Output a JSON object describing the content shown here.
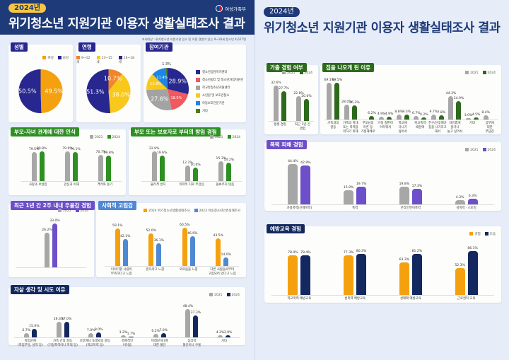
{
  "left": {
    "badge": "2024년",
    "title": "위기청소년 지원기관 이용자 생활실태조사 결과",
    "ministry": "여성가족부",
    "note": "조사대상 : 위기청소년 지원기관 입소 및 이용 경험이 있는 9~18세 청소년 4,627명"
  },
  "right": {
    "badge": "2024년",
    "title": "위기청소년 지원기관 이용자 생활실태조사 결과"
  },
  "colors": {
    "navy": "#27278f",
    "green": "#2e8f23",
    "purple": "#6d4fc9",
    "blue": "#4f88d3",
    "darknavy": "#13285e",
    "darkgreen": "#2d6a1c",
    "orange": "#f5a10f",
    "gray": "#a7a7a7"
  },
  "chart_data": [
    {
      "id": "gender",
      "type": "pie",
      "title": "성별",
      "slices": [
        {
          "name": "여성",
          "value": 49.5,
          "label": "49.5%",
          "color": "#f5a10f"
        },
        {
          "name": "남성",
          "value": 50.5,
          "label": "50.5%",
          "color": "#27278f"
        }
      ]
    },
    {
      "id": "age",
      "type": "pie",
      "title": "연령",
      "slices": [
        {
          "name": "9~12세",
          "value": 10.7,
          "label": "10.7%",
          "color": "#f0852a"
        },
        {
          "name": "13~15세",
          "value": 38.0,
          "label": "38.0%",
          "color": "#f8c91a"
        },
        {
          "name": "16~18세",
          "value": 51.3,
          "label": "51.3%",
          "color": "#27278f"
        }
      ]
    },
    {
      "id": "inst",
      "type": "pie",
      "title": "참여기관",
      "slices": [
        {
          "name": "청소년상담복지센터",
          "value": 28.9,
          "label": "28.9%",
          "color": "#27278f"
        },
        {
          "name": "청소년쉼터 및 청소년자립지원관",
          "value": 18.0,
          "label": "18.0%",
          "color": "#f0595f"
        },
        {
          "name": "학교밖청소년지원센터",
          "value": 27.6,
          "label": "27.6%",
          "color": "#a3a3a3"
        },
        {
          "name": "소년원 및 보호관찰소",
          "value": 12.8,
          "label": "12.8%",
          "color": "#f8c91a"
        },
        {
          "name": "아동보호전문기관",
          "value": 11.4,
          "label": "11.4%",
          "color": "#1c86e6"
        },
        {
          "name": "기타",
          "value": 1.3,
          "label": "1.3%",
          "color": "#4d7c1f"
        }
      ]
    },
    {
      "id": "parent",
      "type": "bar",
      "title": "부모-자녀 관계에 대한 인식",
      "categories": [
        "사랑과 보살핌",
        "관심과 이해",
        "격려와 용기"
      ],
      "series": [
        {
          "name": "2021",
          "values": [
            79.5,
            79.9,
            70.7
          ],
          "color": "#a7a7a7"
        },
        {
          "name": "2024",
          "values": [
            80.8,
            79.1,
            69.8
          ],
          "color": "#2e8f23"
        }
      ]
    },
    {
      "id": "abuse",
      "type": "bar",
      "title": "부모 또는 보호자로 부터의 방임 경험",
      "categories": [
        "물리적 방치",
        "의학적 치료 무관심",
        "돌봐주지 않음"
      ],
      "series": [
        {
          "name": "2021",
          "values": [
            22.9,
            12.2,
            15.3
          ],
          "color": "#a7a7a7"
        },
        {
          "name": "2024",
          "values": [
            19.6,
            10.6,
            14.2
          ],
          "color": "#2e8f23"
        }
      ]
    },
    {
      "id": "depress",
      "type": "bar",
      "title": "최근 1년 간 2주 내내 우울감 경험",
      "categories": [
        ""
      ],
      "series": [
        {
          "name": "2021",
          "values": [
            26.2
          ],
          "color": "#a7a7a7"
        },
        {
          "name": "2024",
          "values": [
            33.0
          ],
          "color": "#6d4fc9"
        }
      ]
    },
    {
      "id": "isolation",
      "type": "bar",
      "title": "사회적 고립감",
      "categories": [
        "이야기할 사람이\n부족하다고 느낌",
        "혼자라고 느낌",
        "외로움을 느낌",
        "다른 사람들로부터\n고립되어 있다고 느낌"
      ],
      "series": [
        {
          "name": "2024 위기청소년생활실태조사",
          "values": [
            59.1,
            52.0,
            60.5,
            43.5
          ],
          "color": "#f5a10f"
        },
        {
          "name": "2023 아동청소년인권실태조사",
          "values": [
            42.1,
            36.1,
            46.6,
            14.0
          ],
          "color": "#4f88d3"
        }
      ]
    },
    {
      "id": "suicide",
      "type": "bar",
      "title": "자살 생각 및 시도 이유",
      "categories": [
        "학업문제\n(학업부담, 성적 등)",
        "가족 간의 갈등\n(가정폭력이나 학대 등)",
        "선후배나 또래와의 갈등\n(학교폭력 등)",
        "경제적인\n어려움",
        "미래(진로)에\n대한 불안",
        "심리적\n불안이나 우울",
        "기타"
      ],
      "series": [
        {
          "name": "2021",
          "values": [
            6.7,
            26.3,
            7.0,
            3.2,
            6.2,
            48.4,
            4.2
          ],
          "color": "#a7a7a7"
        },
        {
          "name": "2024",
          "values": [
            15.0,
            27.0,
            8.0,
            1.7,
            7.0,
            37.3,
            3.9
          ],
          "color": "#13285e"
        }
      ]
    },
    {
      "id": "runaway",
      "type": "bar",
      "title": "가출 경험 여부",
      "categories": [
        "평생 경험",
        "최근 1년 간\n경험"
      ],
      "series": [
        {
          "name": "2021",
          "values": [
            32.6,
            22.8
          ],
          "color": "#a7a7a7"
        },
        {
          "name": "2024",
          "values": [
            27.7,
            20.0
          ],
          "color": "#2d6a1c"
        }
      ]
    },
    {
      "id": "reason",
      "type": "bar",
      "title": "집을 나오게 된 이유",
      "categories": [
        "가족과의\n갈등",
        "가족의 학대\n또는 폭력을\n피하기 위해",
        "부모님의\n이혼 등\n가정해체로",
        "가정 형편이\n어려워서",
        "학교에\n다니기\n싫어서",
        "학교폭력\n때문에",
        "친구/선후배가\n집을 나가자고\n해서",
        "자유롭게\n살거나\n놀고 싶어서",
        "기타",
        "공부에\n대한\n부담감"
      ],
      "series": [
        {
          "name": "2021",
          "values": [
            69.1,
            28.0,
            null,
            4.9,
            8.8,
            6.7,
            9.7,
            44.3,
            3.0,
            8.4
          ],
          "color": "#a7a7a7"
        },
        {
          "name": "2024",
          "values": [
            69.5,
            26.3,
            6.2,
            4.9,
            9.3,
            4.2,
            7.8,
            34.9,
            4.5,
            null
          ],
          "color": "#2d6a1c"
        }
      ]
    },
    {
      "id": "violence",
      "type": "bar",
      "title": "폭력 피해 경험",
      "categories": [
        "가정폭력(신체폭력)",
        "폭력",
        "온라인언어폭력",
        "성폭력 · 스토킹"
      ],
      "series": [
        {
          "name": "2021",
          "values": [
            44.4,
            15.9,
            19.8,
            4.3
          ],
          "color": "#a7a7a7"
        },
        {
          "name": "2024",
          "values": [
            42.9,
            19.7,
            17.3,
            6.3
          ],
          "color": "#6d4fc9"
        }
      ]
    },
    {
      "id": "edu",
      "type": "bar",
      "title": "예방교육 경험",
      "categories": [
        "학교폭력 예방교육",
        "성폭력 예방교육",
        "성매매 예방교육",
        "근로권익 교육"
      ],
      "series": [
        {
          "name": "경험",
          "values": [
            78.0,
            77.3,
            63.3,
            52.3
          ],
          "color": "#f5a10f"
        },
        {
          "name": "도움",
          "values": [
            78.4,
            80.3,
            81.2,
            86.1
          ],
          "color": "#13285e"
        }
      ]
    }
  ]
}
